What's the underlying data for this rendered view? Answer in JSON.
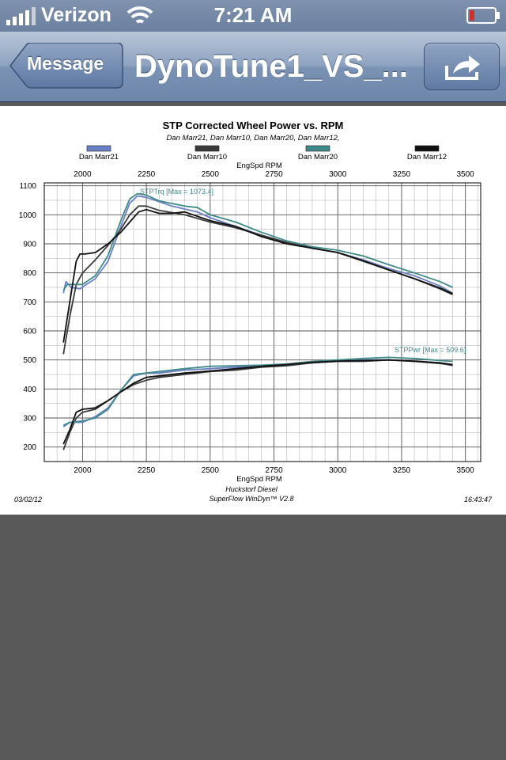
{
  "status_bar": {
    "carrier": "Verizon",
    "time": "7:21 AM",
    "icons": [
      "signal-icon",
      "wifi-icon",
      "battery-icon"
    ]
  },
  "nav": {
    "back_label": "Message",
    "title": "DynoTune1_VS_...",
    "action_icon": "share-icon"
  },
  "chart_data": {
    "type": "line",
    "title": "STP Corrected Wheel Power vs. RPM",
    "subtitle": "Dan Marr21, Dan Marr10, Dan Marr20, Dan Marr12,",
    "xlabel": "EngSpd  RPM",
    "x_ticks": [
      "2000",
      "2250",
      "2500",
      "2750",
      "3000",
      "3250",
      "3500"
    ],
    "y_ticks": [
      "1100",
      "1000",
      "900",
      "800",
      "700",
      "600",
      "500",
      "400",
      "300",
      "200"
    ],
    "xlim": [
      1850,
      3560
    ],
    "ylim": [
      150,
      1110
    ],
    "grid": true,
    "legend_position": "top",
    "annotations": {
      "torque": "STPTrq [Max = 1073.4]",
      "power": "STPPwr [Max = 509.6]"
    },
    "footer": {
      "left": "03/02/12",
      "center1": "Huckstorf Diesel",
      "center2": "SuperFlow WinDyn™ V2.8",
      "right": "16:43:47"
    },
    "series": [
      {
        "name": "Dan Marr21",
        "color": "#6b7fc4",
        "torque": [
          [
            1925,
            730
          ],
          [
            1935,
            770
          ],
          [
            1955,
            750
          ],
          [
            1990,
            745
          ],
          [
            2015,
            760
          ],
          [
            2050,
            780
          ],
          [
            2100,
            840
          ],
          [
            2150,
            960
          ],
          [
            2185,
            1040
          ],
          [
            2215,
            1065
          ],
          [
            2250,
            1060
          ],
          [
            2300,
            1045
          ],
          [
            2350,
            1030
          ],
          [
            2400,
            1020
          ],
          [
            2450,
            1010
          ],
          [
            2500,
            990
          ],
          [
            2600,
            960
          ],
          [
            2700,
            930
          ],
          [
            2800,
            905
          ],
          [
            2900,
            885
          ],
          [
            3000,
            870
          ],
          [
            3100,
            845
          ],
          [
            3200,
            815
          ],
          [
            3300,
            790
          ],
          [
            3400,
            755
          ],
          [
            3450,
            730
          ]
        ],
        "power": [
          [
            1925,
            270
          ],
          [
            1950,
            285
          ],
          [
            2000,
            285
          ],
          [
            2050,
            305
          ],
          [
            2100,
            335
          ],
          [
            2150,
            395
          ],
          [
            2200,
            445
          ],
          [
            2250,
            455
          ],
          [
            2300,
            455
          ],
          [
            2400,
            465
          ],
          [
            2500,
            470
          ],
          [
            2600,
            475
          ],
          [
            2700,
            480
          ],
          [
            2800,
            485
          ],
          [
            2900,
            490
          ],
          [
            3000,
            495
          ],
          [
            3100,
            500
          ],
          [
            3200,
            500
          ],
          [
            3300,
            495
          ],
          [
            3400,
            490
          ],
          [
            3450,
            480
          ]
        ]
      },
      {
        "name": "Dan Marr10",
        "color": "#3a3a3a",
        "torque": [
          [
            1925,
            520
          ],
          [
            1950,
            650
          ],
          [
            1975,
            760
          ],
          [
            2000,
            800
          ],
          [
            2050,
            845
          ],
          [
            2100,
            895
          ],
          [
            2150,
            950
          ],
          [
            2185,
            1000
          ],
          [
            2220,
            1030
          ],
          [
            2250,
            1030
          ],
          [
            2300,
            1015
          ],
          [
            2400,
            1000
          ],
          [
            2500,
            975
          ],
          [
            2600,
            955
          ],
          [
            2700,
            930
          ],
          [
            2800,
            905
          ],
          [
            2900,
            885
          ],
          [
            3000,
            870
          ],
          [
            3100,
            840
          ],
          [
            3200,
            810
          ],
          [
            3300,
            780
          ],
          [
            3400,
            745
          ],
          [
            3450,
            725
          ]
        ],
        "power": [
          [
            1925,
            190
          ],
          [
            1950,
            250
          ],
          [
            1975,
            300
          ],
          [
            2000,
            320
          ],
          [
            2050,
            330
          ],
          [
            2100,
            360
          ],
          [
            2150,
            390
          ],
          [
            2200,
            415
          ],
          [
            2250,
            430
          ],
          [
            2300,
            440
          ],
          [
            2400,
            450
          ],
          [
            2500,
            460
          ],
          [
            2600,
            465
          ],
          [
            2700,
            475
          ],
          [
            2800,
            480
          ],
          [
            2900,
            490
          ],
          [
            3000,
            495
          ],
          [
            3100,
            495
          ],
          [
            3200,
            500
          ],
          [
            3300,
            495
          ],
          [
            3400,
            488
          ],
          [
            3450,
            482
          ]
        ]
      },
      {
        "name": "Dan Marr20",
        "color": "#3f8a8a",
        "torque": [
          [
            1925,
            740
          ],
          [
            1940,
            760
          ],
          [
            1965,
            760
          ],
          [
            2000,
            760
          ],
          [
            2050,
            790
          ],
          [
            2100,
            860
          ],
          [
            2150,
            980
          ],
          [
            2185,
            1055
          ],
          [
            2215,
            1073
          ],
          [
            2250,
            1068
          ],
          [
            2300,
            1048
          ],
          [
            2400,
            1030
          ],
          [
            2450,
            1025
          ],
          [
            2500,
            1000
          ],
          [
            2600,
            975
          ],
          [
            2700,
            940
          ],
          [
            2800,
            910
          ],
          [
            2900,
            890
          ],
          [
            3000,
            878
          ],
          [
            3100,
            858
          ],
          [
            3200,
            828
          ],
          [
            3300,
            800
          ],
          [
            3400,
            770
          ],
          [
            3450,
            750
          ]
        ],
        "power": [
          [
            1925,
            275
          ],
          [
            1950,
            285
          ],
          [
            2000,
            290
          ],
          [
            2050,
            300
          ],
          [
            2100,
            330
          ],
          [
            2150,
            395
          ],
          [
            2200,
            450
          ],
          [
            2250,
            455
          ],
          [
            2300,
            460
          ],
          [
            2400,
            470
          ],
          [
            2500,
            478
          ],
          [
            2600,
            480
          ],
          [
            2700,
            482
          ],
          [
            2800,
            486
          ],
          [
            2900,
            495
          ],
          [
            3000,
            500
          ],
          [
            3100,
            505
          ],
          [
            3200,
            509
          ],
          [
            3300,
            505
          ],
          [
            3400,
            498
          ],
          [
            3450,
            495
          ]
        ]
      },
      {
        "name": "Dan Marr12",
        "color": "#111111",
        "torque": [
          [
            1925,
            560
          ],
          [
            1950,
            700
          ],
          [
            1975,
            840
          ],
          [
            1990,
            865
          ],
          [
            2010,
            865
          ],
          [
            2050,
            870
          ],
          [
            2100,
            900
          ],
          [
            2150,
            940
          ],
          [
            2185,
            975
          ],
          [
            2220,
            1010
          ],
          [
            2250,
            1018
          ],
          [
            2300,
            1005
          ],
          [
            2350,
            1005
          ],
          [
            2400,
            1010
          ],
          [
            2500,
            980
          ],
          [
            2600,
            960
          ],
          [
            2700,
            925
          ],
          [
            2800,
            900
          ],
          [
            2900,
            885
          ],
          [
            3000,
            870
          ],
          [
            3100,
            842
          ],
          [
            3200,
            810
          ],
          [
            3300,
            780
          ],
          [
            3400,
            748
          ],
          [
            3450,
            728
          ]
        ],
        "power": [
          [
            1925,
            210
          ],
          [
            1950,
            260
          ],
          [
            1975,
            320
          ],
          [
            2000,
            330
          ],
          [
            2050,
            335
          ],
          [
            2100,
            360
          ],
          [
            2150,
            390
          ],
          [
            2200,
            420
          ],
          [
            2250,
            440
          ],
          [
            2300,
            445
          ],
          [
            2400,
            455
          ],
          [
            2500,
            462
          ],
          [
            2600,
            470
          ],
          [
            2700,
            478
          ],
          [
            2800,
            484
          ],
          [
            2900,
            492
          ],
          [
            3000,
            496
          ],
          [
            3100,
            498
          ],
          [
            3200,
            500
          ],
          [
            3300,
            496
          ],
          [
            3400,
            490
          ],
          [
            3450,
            484
          ]
        ]
      }
    ]
  }
}
